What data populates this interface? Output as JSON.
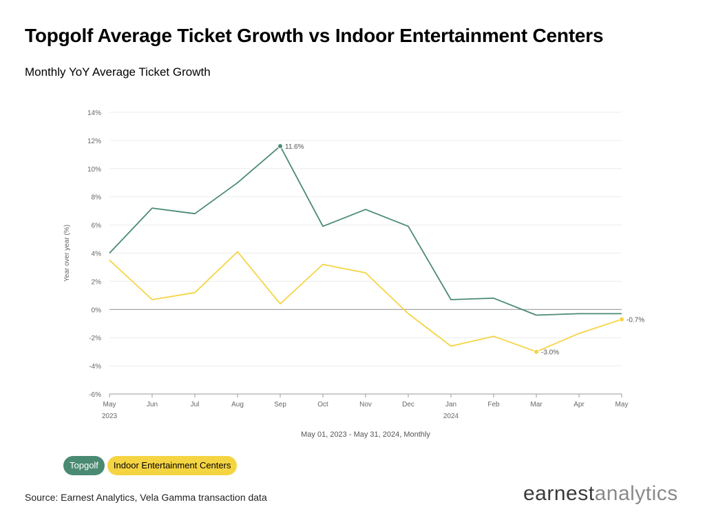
{
  "header": {
    "title": "Topgolf Average Ticket Growth vs Indoor Entertainment Centers",
    "subtitle": "Monthly YoY Average Ticket Growth"
  },
  "footer": {
    "source": "Source: Earnest Analytics, Vela Gamma transaction data",
    "logo_part1": "earnest",
    "logo_part2": "analytics"
  },
  "chart_data": {
    "type": "line",
    "xlabel": "May 01, 2023 - May 31, 2024, Monthly",
    "ylabel": "Year over year (%)",
    "ylim": [
      -6,
      14
    ],
    "yticks": [
      -6,
      -4,
      -2,
      0,
      2,
      4,
      6,
      8,
      10,
      12,
      14
    ],
    "ytick_labels": [
      "-6%",
      "-4%",
      "-2%",
      "0%",
      "2%",
      "4%",
      "6%",
      "8%",
      "10%",
      "12%",
      "14%"
    ],
    "categories": [
      "May",
      "Jun",
      "Jul",
      "Aug",
      "Sep",
      "Oct",
      "Nov",
      "Dec",
      "Jan",
      "Feb",
      "Mar",
      "Apr",
      "May"
    ],
    "year_labels": [
      {
        "index": 0,
        "label": "2023"
      },
      {
        "index": 8,
        "label": "2024"
      }
    ],
    "grid": true,
    "legend_position": "bottom-left",
    "series": [
      {
        "name": "Topgolf",
        "color": "#4a8a72",
        "values": [
          4.0,
          7.2,
          6.8,
          9.0,
          11.6,
          5.9,
          7.1,
          5.9,
          0.7,
          0.8,
          -0.4,
          -0.3,
          -0.3
        ],
        "annotations": [
          {
            "index": 4,
            "label": "11.6%"
          }
        ]
      },
      {
        "name": "Indoor Entertainment Centers",
        "color": "#f5d442",
        "values": [
          3.5,
          0.7,
          1.2,
          4.1,
          0.4,
          3.2,
          2.6,
          -0.3,
          -2.6,
          -1.9,
          -3.0,
          -1.7,
          -0.7
        ],
        "annotations": [
          {
            "index": 10,
            "label": "-3.0%"
          },
          {
            "index": 12,
            "label": "-0.7%"
          }
        ]
      }
    ]
  },
  "legend": {
    "items": [
      {
        "label": "Topgolf",
        "bg": "#4a8a72",
        "fg": "#ffffff"
      },
      {
        "label": "Indoor Entertainment Centers",
        "bg": "#f5d442",
        "fg": "#000000"
      }
    ]
  }
}
